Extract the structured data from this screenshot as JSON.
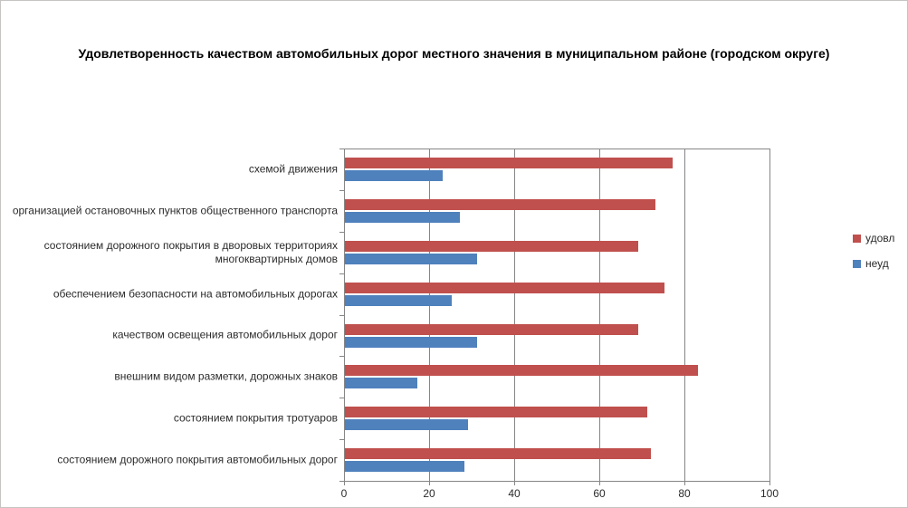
{
  "chart_data": {
    "type": "bar",
    "orientation": "horizontal",
    "title": "Удовлетворенность качеством автомобильных дорог местного значения в  муниципальном районе (городском округе)",
    "categories": [
      "схемой движения",
      "организацией остановочных пунктов общественного транспорта",
      "состоянием дорожного покрытия  в дворовых  территориях многоквартирных домов",
      "обеспечением  безопасности на  автомобильных дорогах",
      "качеством освещения  автомобильных дорог",
      "внешним  видом разметки,  дорожных знаков",
      "состоянием покрытия тротуаров",
      "состоянием дорожного покрытия автомобильных дорог"
    ],
    "series": [
      {
        "key": "satisfied",
        "name": "удовл",
        "color": "#C0504D",
        "values": [
          77,
          73,
          69,
          75,
          69,
          83,
          71,
          72
        ]
      },
      {
        "key": "unsatisfied",
        "name": "неуд",
        "color": "#4F81BD",
        "values": [
          23,
          27,
          31,
          25,
          31,
          17,
          29,
          28
        ]
      }
    ],
    "x_axis": {
      "min": 0,
      "max": 100,
      "ticks": [
        0,
        20,
        40,
        60,
        80,
        100
      ]
    },
    "grid": "vertical-gridlines-on",
    "legend_position": "right"
  },
  "colors": {
    "satisfied_bar": "#C0504D",
    "unsatisfied_bar": "#4F81BD",
    "gridline": "#868686",
    "axis_line": "#868686",
    "text": "#2b2b2b",
    "title_text": "#000000",
    "frame_border": "#c6c4c2",
    "background": "#ffffff"
  }
}
